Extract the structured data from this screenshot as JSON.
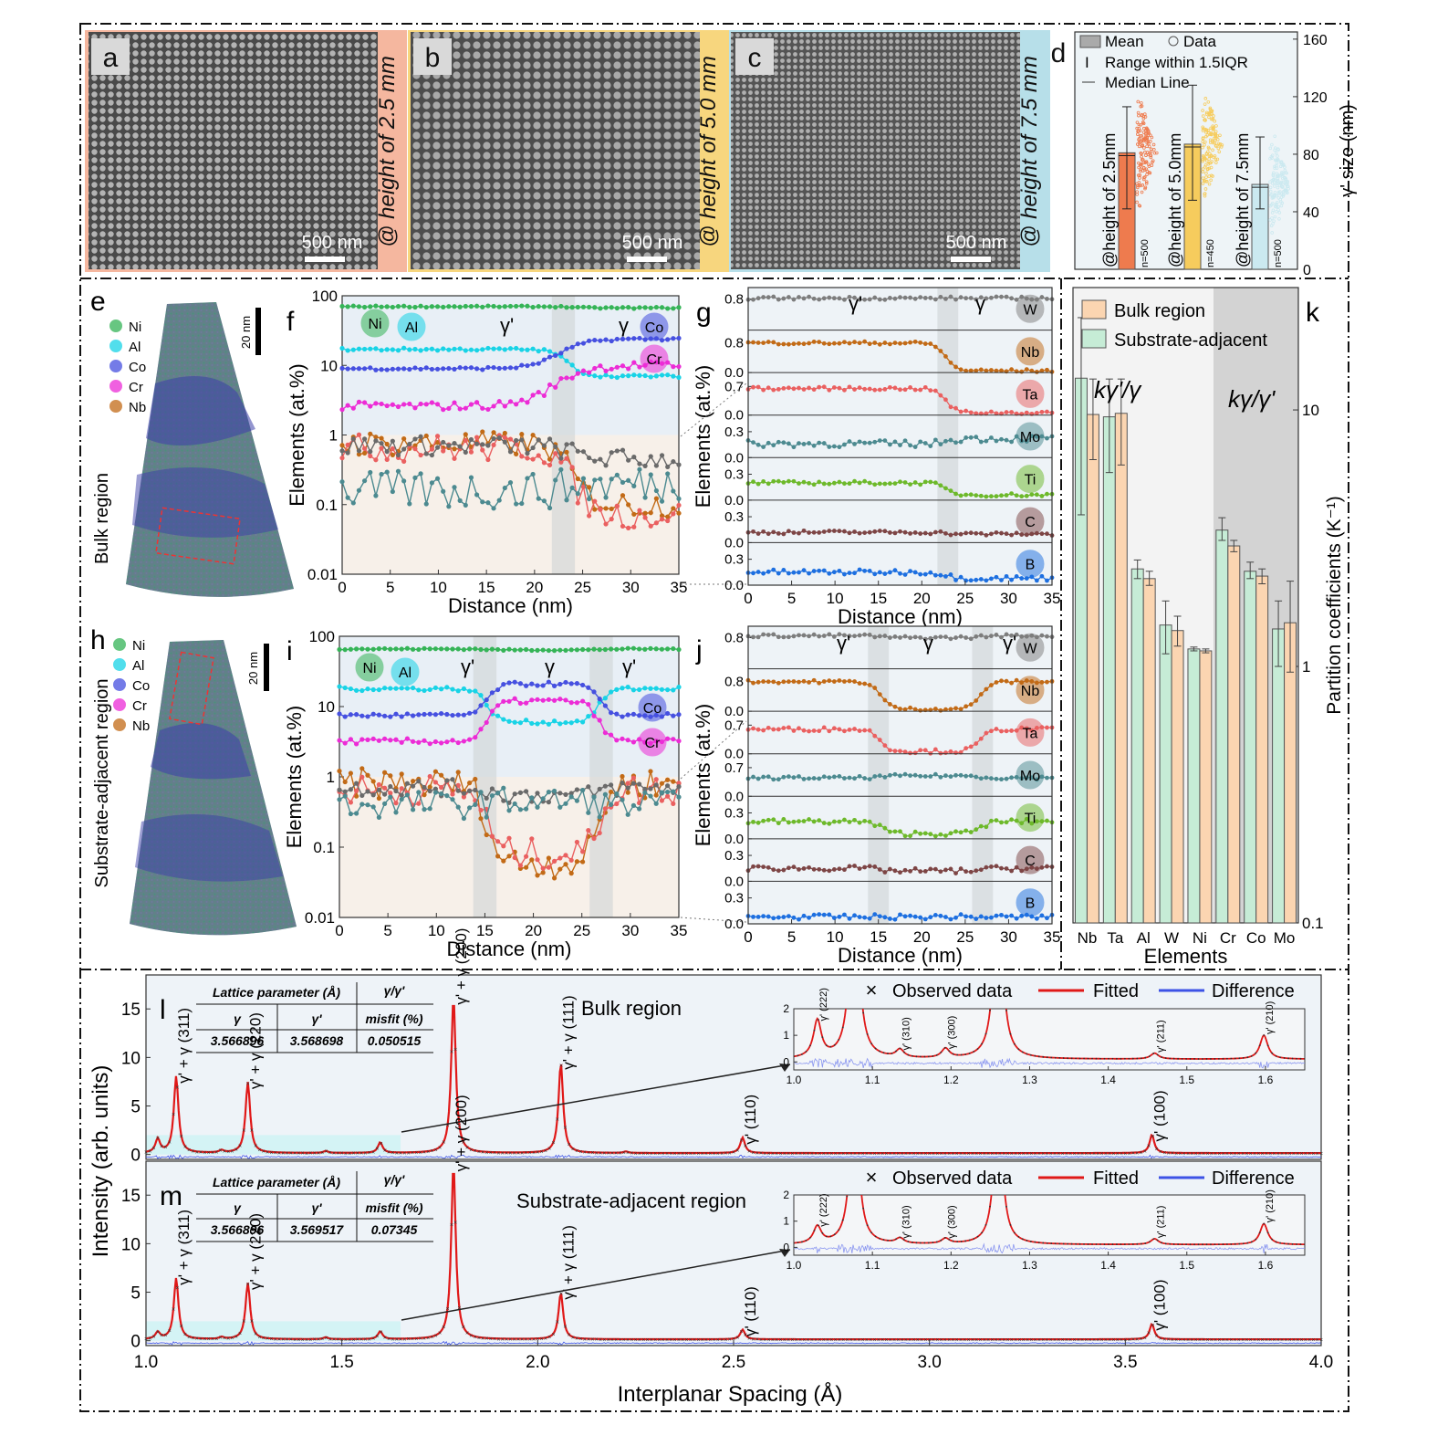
{
  "panels": {
    "a": {
      "letter": "a",
      "height_label": "@ height of 2.5 mm",
      "scale": "500 nm",
      "tint": "#f5b79f"
    },
    "b": {
      "letter": "b",
      "height_label": "@ height of 5.0 mm",
      "scale": "500 nm",
      "tint": "#f7d67e"
    },
    "c": {
      "letter": "c",
      "height_label": "@ height of 7.5 mm",
      "scale": "500 nm",
      "tint": "#b7dfe9"
    },
    "d": {
      "letter": "d",
      "legend": [
        "Mean",
        "Data",
        "Range within 1.5IQR",
        "Median Line"
      ],
      "ylabel": "γ' size (nm)"
    },
    "e": {
      "letter": "e",
      "scale": "20 nm",
      "region": "Bulk region",
      "species": [
        "Ni",
        "Al",
        "Co",
        "Cr",
        "Nb"
      ]
    },
    "h": {
      "letter": "h",
      "scale": "20 nm",
      "region": "Substrate-adjacent region",
      "species": [
        "Ni",
        "Al",
        "Co",
        "Cr",
        "Nb"
      ]
    },
    "f": {
      "letter": "f",
      "phases": [
        "γ'",
        "γ"
      ]
    },
    "i": {
      "letter": "i",
      "phases": [
        "γ'",
        "γ",
        "γ'"
      ]
    },
    "g": {
      "letter": "g",
      "phases": [
        "γ'",
        "γ"
      ]
    },
    "j": {
      "letter": "j",
      "phases": [
        "γ'",
        "γ",
        "γ'"
      ]
    },
    "k": {
      "letter": "k",
      "legend": [
        "Bulk region",
        "Substrate-adjacent"
      ],
      "left_label": "kγ'/γ",
      "right_label": "kγ/γ'"
    },
    "l": {
      "letter": "l",
      "title": "Bulk region",
      "table": {
        "h1": "Lattice parameter (Å)",
        "h2": "γ/γ'",
        "h2b": "misfit (%)",
        "c1": "γ",
        "c2": "γ'",
        "v1": "3.566896",
        "v2": "3.568698",
        "v3": "0.050515"
      }
    },
    "m": {
      "letter": "m",
      "title": "Substrate-adjacent region",
      "table": {
        "h1": "Lattice parameter (Å)",
        "h2": "γ/γ'",
        "h2b": "misfit (%)",
        "c1": "γ",
        "c2": "γ'",
        "v1": "3.566896",
        "v2": "3.569517",
        "v3": "0.07345"
      }
    },
    "xrd_legend": [
      "Observed data",
      "Fitted",
      "Difference"
    ]
  },
  "chart_data": [
    {
      "panel": "d",
      "type": "bar",
      "categories": [
        "@height of 2.5mm",
        "@height of 5.0mm",
        "@height of 7.5mm"
      ],
      "values": [
        81,
        87,
        59
      ],
      "whiskers": [
        [
          42,
          113
        ],
        [
          48,
          128
        ],
        [
          42,
          92
        ]
      ],
      "n": [
        "n=500",
        "n=450",
        "n=500"
      ],
      "colors": [
        "#ee7b4e",
        "#f6cc5d",
        "#cbe9f0"
      ],
      "ylabel": "γ' size (nm)",
      "ylim": [
        0,
        165
      ],
      "yticks": [
        0,
        40,
        80,
        120,
        160
      ]
    },
    {
      "panel": "f",
      "type": "line",
      "xlabel": "Distance (nm)",
      "ylabel": "Elements (at.%)",
      "yscale": "log",
      "xlim": [
        0,
        35
      ],
      "ylim": [
        0.01,
        100
      ],
      "xticks": [
        0,
        5,
        10,
        15,
        20,
        25,
        30,
        35
      ],
      "yticks": [
        "0.01",
        "0.1",
        "1",
        "10",
        "100"
      ],
      "bands": [
        [
          21.8,
          24.2
        ]
      ],
      "series": [
        {
          "name": "Ni",
          "color": "#35b457",
          "y0": 70,
          "y1": 67,
          "tr": [
            22,
            26
          ],
          "noise": 0.01
        },
        {
          "name": "Al",
          "color": "#18d3e6",
          "y0": 17,
          "y1": 7,
          "tr": [
            21,
            26
          ],
          "noise": 0.02
        },
        {
          "name": "Co",
          "color": "#4650e0",
          "y0": 9,
          "y1": 24,
          "tr": [
            18,
            27
          ],
          "noise": 0.02
        },
        {
          "name": "Cr",
          "color": "#ec2cd6",
          "y0": 2.6,
          "y1": 10,
          "tr": [
            17,
            27
          ],
          "noise": 0.06
        },
        {
          "name": "Nb",
          "color": "#c26a16",
          "y0": 0.75,
          "y1": 0.1,
          "tr": [
            21,
            27
          ],
          "noise": 0.18
        },
        {
          "name": "Ta",
          "color": "#ea6060",
          "y0": 0.65,
          "y1": 0.07,
          "tr": [
            21,
            27
          ],
          "noise": 0.2
        },
        {
          "name": "W",
          "color": "#6a6a6a",
          "y0": 0.7,
          "y1": 0.45,
          "tr": [
            20,
            28
          ],
          "noise": 0.14
        },
        {
          "name": "Mo",
          "color": "#4c8a90",
          "y0": 0.16,
          "y1": 0.2,
          "tr": [
            20,
            28
          ],
          "noise": 0.28
        }
      ]
    },
    {
      "panel": "i",
      "type": "line",
      "xlabel": "Distance (nm)",
      "ylabel": "Elements (at.%)",
      "yscale": "log",
      "xlim": [
        0,
        35
      ],
      "ylim": [
        0.01,
        100
      ],
      "xticks": [
        0,
        5,
        10,
        15,
        20,
        25,
        30,
        35
      ],
      "yticks": [
        "0.01",
        "0.1",
        "1",
        "10",
        "100"
      ],
      "bands": [
        [
          13.8,
          16.2
        ],
        [
          25.8,
          28.2
        ]
      ],
      "series": [
        {
          "name": "Ni",
          "color": "#35b457",
          "y0": 66,
          "y1": 64,
          "noise": 0.01
        },
        {
          "name": "Al",
          "color": "#18d3e6",
          "y0": 18,
          "y1": 6,
          "noise": 0.03
        },
        {
          "name": "Co",
          "color": "#4650e0",
          "y0": 7.5,
          "y1": 21,
          "noise": 0.03
        },
        {
          "name": "Cr",
          "color": "#ec2cd6",
          "y0": 3.2,
          "y1": 12,
          "noise": 0.04
        },
        {
          "name": "Nb",
          "color": "#c26a16",
          "y0": 0.8,
          "y1": 0.06,
          "noise": 0.22
        },
        {
          "name": "Ta",
          "color": "#ea6060",
          "y0": 0.65,
          "y1": 0.08,
          "noise": 0.22
        },
        {
          "name": "W",
          "color": "#6a6a6a",
          "y0": 0.7,
          "y1": 0.55,
          "noise": 0.12
        },
        {
          "name": "Mo",
          "color": "#4c8a90",
          "y0": 0.4,
          "y1": 0.45,
          "noise": 0.2
        }
      ]
    },
    {
      "panel": "g",
      "type": "line",
      "xlabel": "Distance (nm)",
      "ylabel": "Elements (at.%)",
      "xlim": [
        0,
        35
      ],
      "xticks": [
        0,
        5,
        10,
        15,
        20,
        25,
        30,
        35
      ],
      "bands": [
        [
          21.8,
          24.2
        ]
      ],
      "rows": [
        {
          "label": "W",
          "color": "#7d7d7d",
          "ticks": [
            "0.8"
          ],
          "ymax": 1.0,
          "y0": 0.82,
          "y1": 0.82,
          "noise": 0.04
        },
        {
          "label": "Nb",
          "color": "#c26a16",
          "ticks": [
            "0.8",
            "0.0"
          ],
          "ymax": 1.05,
          "y0": 0.8,
          "y1": 0.05,
          "noise": 0.04
        },
        {
          "label": "Ta",
          "color": "#ea6060",
          "ticks": [
            "0.7",
            "0.0"
          ],
          "ymax": 0.95,
          "y0": 0.65,
          "y1": 0.06,
          "noise": 0.04
        },
        {
          "label": "Mo",
          "color": "#4c8a90",
          "ticks": [
            "0.3",
            "0.0"
          ],
          "ymax": 0.45,
          "y0": 0.16,
          "y1": 0.22,
          "noise": 0.04
        },
        {
          "label": "Ti",
          "color": "#6db92a",
          "ticks": [
            "0.3",
            "0.0"
          ],
          "ymax": 0.45,
          "y0": 0.2,
          "y1": 0.06,
          "noise": 0.02
        },
        {
          "label": "C",
          "color": "#7d4545",
          "ticks": [
            "0.3",
            "0.0"
          ],
          "ymax": 0.45,
          "y0": 0.12,
          "y1": 0.1,
          "noise": 0.02
        },
        {
          "label": "B",
          "color": "#1d6fe0",
          "ticks": [
            "0.3",
            "0.0"
          ],
          "ymax": 0.45,
          "y0": 0.15,
          "y1": 0.08,
          "noise": 0.03
        }
      ]
    },
    {
      "panel": "j",
      "type": "line",
      "xlabel": "Distance (nm)",
      "ylabel": "Elements (at.%)",
      "xlim": [
        0,
        35
      ],
      "xticks": [
        0,
        5,
        10,
        15,
        20,
        25,
        30,
        35
      ],
      "bands": [
        [
          13.8,
          16.2
        ],
        [
          25.8,
          28.2
        ]
      ],
      "rows": [
        {
          "label": "W",
          "color": "#7d7d7d",
          "ticks": [
            "0.8"
          ],
          "ymax": 1.0,
          "y0": 0.85,
          "y1": 0.8,
          "noise": 0.04
        },
        {
          "label": "Nb",
          "color": "#c26a16",
          "ticks": [
            "0.8",
            "0.0"
          ],
          "ymax": 1.05,
          "y0": 0.8,
          "y1": 0.06,
          "noise": 0.04
        },
        {
          "label": "Ta",
          "color": "#ea6060",
          "ticks": [
            "0.7",
            "0.0"
          ],
          "ymax": 0.95,
          "y0": 0.6,
          "y1": 0.06,
          "noise": 0.05
        },
        {
          "label": "Mo",
          "color": "#4c8a90",
          "ticks": [
            "0.7",
            "0.0"
          ],
          "ymax": 0.95,
          "y0": 0.45,
          "y1": 0.5,
          "noise": 0.04
        },
        {
          "label": "Ti",
          "color": "#6db92a",
          "ticks": [
            "0.3",
            "0.0"
          ],
          "ymax": 0.45,
          "y0": 0.2,
          "y1": 0.06,
          "noise": 0.03
        },
        {
          "label": "C",
          "color": "#7d4545",
          "ticks": [
            "0.3",
            "0.0"
          ],
          "ymax": 0.45,
          "y0": 0.15,
          "y1": 0.12,
          "noise": 0.03
        },
        {
          "label": "B",
          "color": "#1d6fe0",
          "ticks": [
            "0.3",
            "0.0"
          ],
          "ymax": 0.45,
          "y0": 0.08,
          "y1": 0.08,
          "noise": 0.03
        }
      ]
    },
    {
      "panel": "k",
      "type": "bar",
      "ylabel": "Partition coefficients (K⁻¹)",
      "xlabel": "Elements",
      "yscale": "log",
      "ylim": [
        0.1,
        30
      ],
      "yticks": [
        "0.1",
        "1",
        "10"
      ],
      "categories": [
        "Nb",
        "Ta",
        "Al",
        "W",
        "Ni",
        "Cr",
        "Co",
        "Mo"
      ],
      "series": [
        {
          "name": "Substrate-adjacent",
          "color": "#c6ecd6",
          "values": [
            13.3,
            9.4,
            2.4,
            1.45,
            1.17,
            3.4,
            2.35,
            1.4
          ],
          "err": [
            [
              3.9,
              22.9
            ],
            [
              5.7,
              13.2
            ],
            [
              2.2,
              2.6
            ],
            [
              1.12,
              1.8
            ],
            [
              1.15,
              1.19
            ],
            [
              3.1,
              3.8
            ],
            [
              2.2,
              2.55
            ],
            [
              1.0,
              1.8
            ]
          ]
        },
        {
          "name": "Bulk region",
          "color": "#fbd5b1",
          "values": [
            9.6,
            9.7,
            2.2,
            1.38,
            1.15,
            2.95,
            2.25,
            1.48
          ],
          "err": [
            [
              6.4,
              13.2
            ],
            [
              6.1,
              13.2
            ],
            [
              2.07,
              2.35
            ],
            [
              1.2,
              1.57
            ],
            [
              1.13,
              1.17
            ],
            [
              2.8,
              3.1
            ],
            [
              2.1,
              2.4
            ],
            [
              0.95,
              2.15
            ]
          ]
        }
      ]
    },
    {
      "panel": "l",
      "type": "line",
      "xlabel": "Interplanar Spacing (Å)",
      "ylabel": "Intensity (arb. units)",
      "xlim": [
        1.0,
        4.0
      ],
      "ylim": [
        -0.5,
        18.5
      ],
      "yticks": [
        0,
        5,
        10,
        15
      ],
      "peaks": [
        {
          "x": 1.03,
          "h": 1.4,
          "label": ""
        },
        {
          "x": 1.077,
          "h": 7.9,
          "label": "γ' + γ (311)"
        },
        {
          "x": 1.193,
          "h": 0.25,
          "label": ""
        },
        {
          "x": 1.26,
          "h": 7.3,
          "label": "γ' + γ (220)"
        },
        {
          "x": 1.459,
          "h": 0.2,
          "label": ""
        },
        {
          "x": 1.598,
          "h": 1.1,
          "label": ""
        },
        {
          "x": 1.785,
          "h": 16.0,
          "label": "γ' + γ (200)"
        },
        {
          "x": 2.059,
          "h": 9.3,
          "label": "γ' + γ (111)"
        },
        {
          "x": 2.225,
          "h": 0.15,
          "label": ""
        },
        {
          "x": 2.523,
          "h": 1.6,
          "label": "γ' (110)"
        },
        {
          "x": 3.568,
          "h": 1.9,
          "label": "γ' (100)"
        }
      ]
    },
    {
      "panel": "m",
      "type": "line",
      "xlabel": "Interplanar Spacing (Å)",
      "ylabel": "Intensity (arb. units)",
      "xlim": [
        1.0,
        4.0
      ],
      "ylim": [
        -0.5,
        18.5
      ],
      "yticks": [
        0,
        5,
        10,
        15
      ],
      "peaks": [
        {
          "x": 1.03,
          "h": 0.7,
          "label": ""
        },
        {
          "x": 1.077,
          "h": 6.3,
          "label": "γ' + γ (311)"
        },
        {
          "x": 1.193,
          "h": 0.2,
          "label": ""
        },
        {
          "x": 1.26,
          "h": 5.8,
          "label": "γ' + γ (220)"
        },
        {
          "x": 1.459,
          "h": 0.2,
          "label": ""
        },
        {
          "x": 1.598,
          "h": 0.8,
          "label": ""
        },
        {
          "x": 1.785,
          "h": 18.0,
          "label": "γ' + γ (200)"
        },
        {
          "x": 2.059,
          "h": 4.8,
          "label": "γ' + γ (111)"
        },
        {
          "x": 2.523,
          "h": 1.0,
          "label": "γ' (110)"
        },
        {
          "x": 3.568,
          "h": 1.6,
          "label": "γ' (100)"
        }
      ]
    },
    {
      "panel": "l-inset",
      "type": "line",
      "xlim": [
        1.0,
        1.65
      ],
      "ylim": [
        -0.3,
        2
      ],
      "xticks": [
        "1.0",
        "1.1",
        "1.2",
        "1.3",
        "1.4",
        "1.5",
        "1.6"
      ],
      "yticks": [
        "0",
        "1",
        "2"
      ],
      "peaks": [
        {
          "x": 1.03,
          "h": 1.4,
          "label": "γ' (222)"
        },
        {
          "x": 1.077,
          "h": 7.9,
          "label": ""
        },
        {
          "x": 1.135,
          "h": 0.3,
          "label": "γ' (310)"
        },
        {
          "x": 1.193,
          "h": 0.35,
          "label": "γ' (300)"
        },
        {
          "x": 1.26,
          "h": 7.3,
          "label": ""
        },
        {
          "x": 1.459,
          "h": 0.22,
          "label": "γ' (211)"
        },
        {
          "x": 1.598,
          "h": 0.9,
          "label": "γ' (210)"
        }
      ]
    },
    {
      "panel": "m-inset",
      "type": "line",
      "xlim": [
        1.0,
        1.65
      ],
      "ylim": [
        -0.3,
        2
      ],
      "xticks": [
        "1.0",
        "1.1",
        "1.2",
        "1.3",
        "1.4",
        "1.5",
        "1.6"
      ],
      "yticks": [
        "0",
        "1",
        "2"
      ],
      "peaks": [
        {
          "x": 1.03,
          "h": 0.65,
          "label": "γ' (222)"
        },
        {
          "x": 1.077,
          "h": 6.3,
          "label": ""
        },
        {
          "x": 1.135,
          "h": 0.2,
          "label": "γ' (310)"
        },
        {
          "x": 1.193,
          "h": 0.2,
          "label": "γ' (300)"
        },
        {
          "x": 1.26,
          "h": 5.8,
          "label": ""
        },
        {
          "x": 1.459,
          "h": 0.22,
          "label": "γ' (211)"
        },
        {
          "x": 1.598,
          "h": 0.8,
          "label": "γ' (210)"
        }
      ]
    }
  ]
}
